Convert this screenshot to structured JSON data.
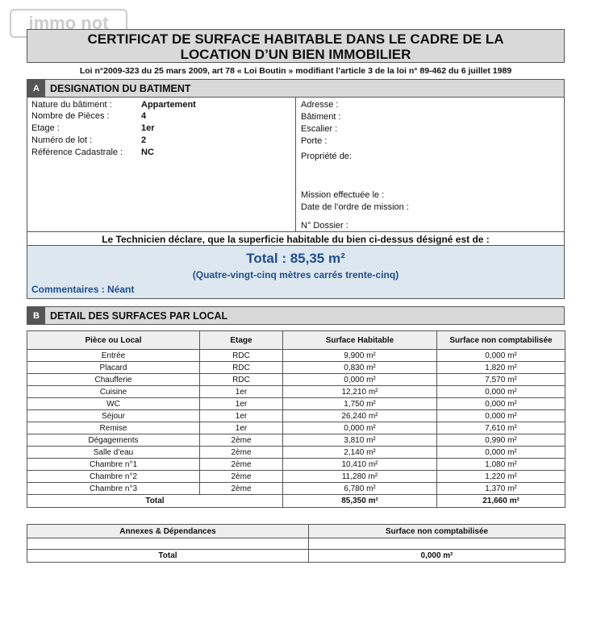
{
  "watermark": "immo not",
  "header": {
    "title_lines": [
      "CERTIFICAT DE SURFACE HABITABLE DANS LE CADRE DE LA",
      "LOCATION D’UN BIEN IMMOBILIER"
    ],
    "law": "Loi n°2009-323 du 25 mars 2009, art 78 « Loi Boutin » modifiant l’article 3 de la loi n° 89-462 du 6 juillet 1989"
  },
  "section_a": {
    "letter": "A",
    "title": "DESIGNATION DU BATIMENT",
    "left": [
      {
        "label": "Nature du bâtiment :",
        "value": "Appartement"
      },
      {
        "label": "Nombre de Pièces :",
        "value": "4"
      },
      {
        "label": "Etage :",
        "value": "1er"
      },
      {
        "label": "Numéro de lot :",
        "value": "2"
      },
      {
        "label": "Référence Cadastrale :",
        "value": "NC"
      }
    ],
    "right": [
      "Adresse :",
      "Bâtiment :",
      "Escalier :",
      "Porte :",
      "Propriété de:",
      "Mission effectuée le :",
      "Date de l’ordre de mission :",
      "N° Dossier :"
    ],
    "declaration": "Le Technicien déclare, que la superficie habitable du bien ci-dessus désigné est de :",
    "total": "Total : 85,35 m²",
    "total_words": "(Quatre-vingt-cinq mètres carrés trente-cinq)",
    "comments": "Commentaires : Néant"
  },
  "section_b": {
    "letter": "B",
    "title": "DETAIL DES SURFACES PAR LOCAL",
    "table": {
      "columns": [
        "Pièce ou Local",
        "Etage",
        "Surface Habitable",
        "Surface non comptabilisée"
      ],
      "rows": [
        [
          "Entrée",
          "RDC",
          "9,900 m²",
          "0,000 m²"
        ],
        [
          "Placard",
          "RDC",
          "0,830 m²",
          "1,820 m²"
        ],
        [
          "Chaufferie",
          "RDC",
          "0,000 m²",
          "7,570 m²"
        ],
        [
          "Cuisine",
          "1er",
          "12,210 m²",
          "0,000 m²"
        ],
        [
          "WC",
          "1er",
          "1,750 m²",
          "0,000 m²"
        ],
        [
          "Séjour",
          "1er",
          "26,240 m²",
          "0,000 m²"
        ],
        [
          "Remise",
          "1er",
          "0,000 m²",
          "7,610 m²"
        ],
        [
          "Dégagements",
          "2ème",
          "3,810 m²",
          "0,990 m²"
        ],
        [
          "Salle d’eau",
          "2ème",
          "2,140 m²",
          "0,000 m²"
        ],
        [
          "Chambre n°1",
          "2ème",
          "10,410 m²",
          "1,080 m²"
        ],
        [
          "Chambre n°2",
          "2ème",
          "11,280 m²",
          "1,220 m²"
        ],
        [
          "Chambre n°3",
          "2ème",
          "6,780 m²",
          "1,370 m²"
        ]
      ],
      "total": [
        "Total",
        "85,350 m²",
        "21,660 m²"
      ]
    }
  },
  "annexes": {
    "columns": [
      "Annexes & Dépendances",
      "Surface non comptabilisée"
    ],
    "total": [
      "Total",
      "0,000 m²"
    ]
  }
}
